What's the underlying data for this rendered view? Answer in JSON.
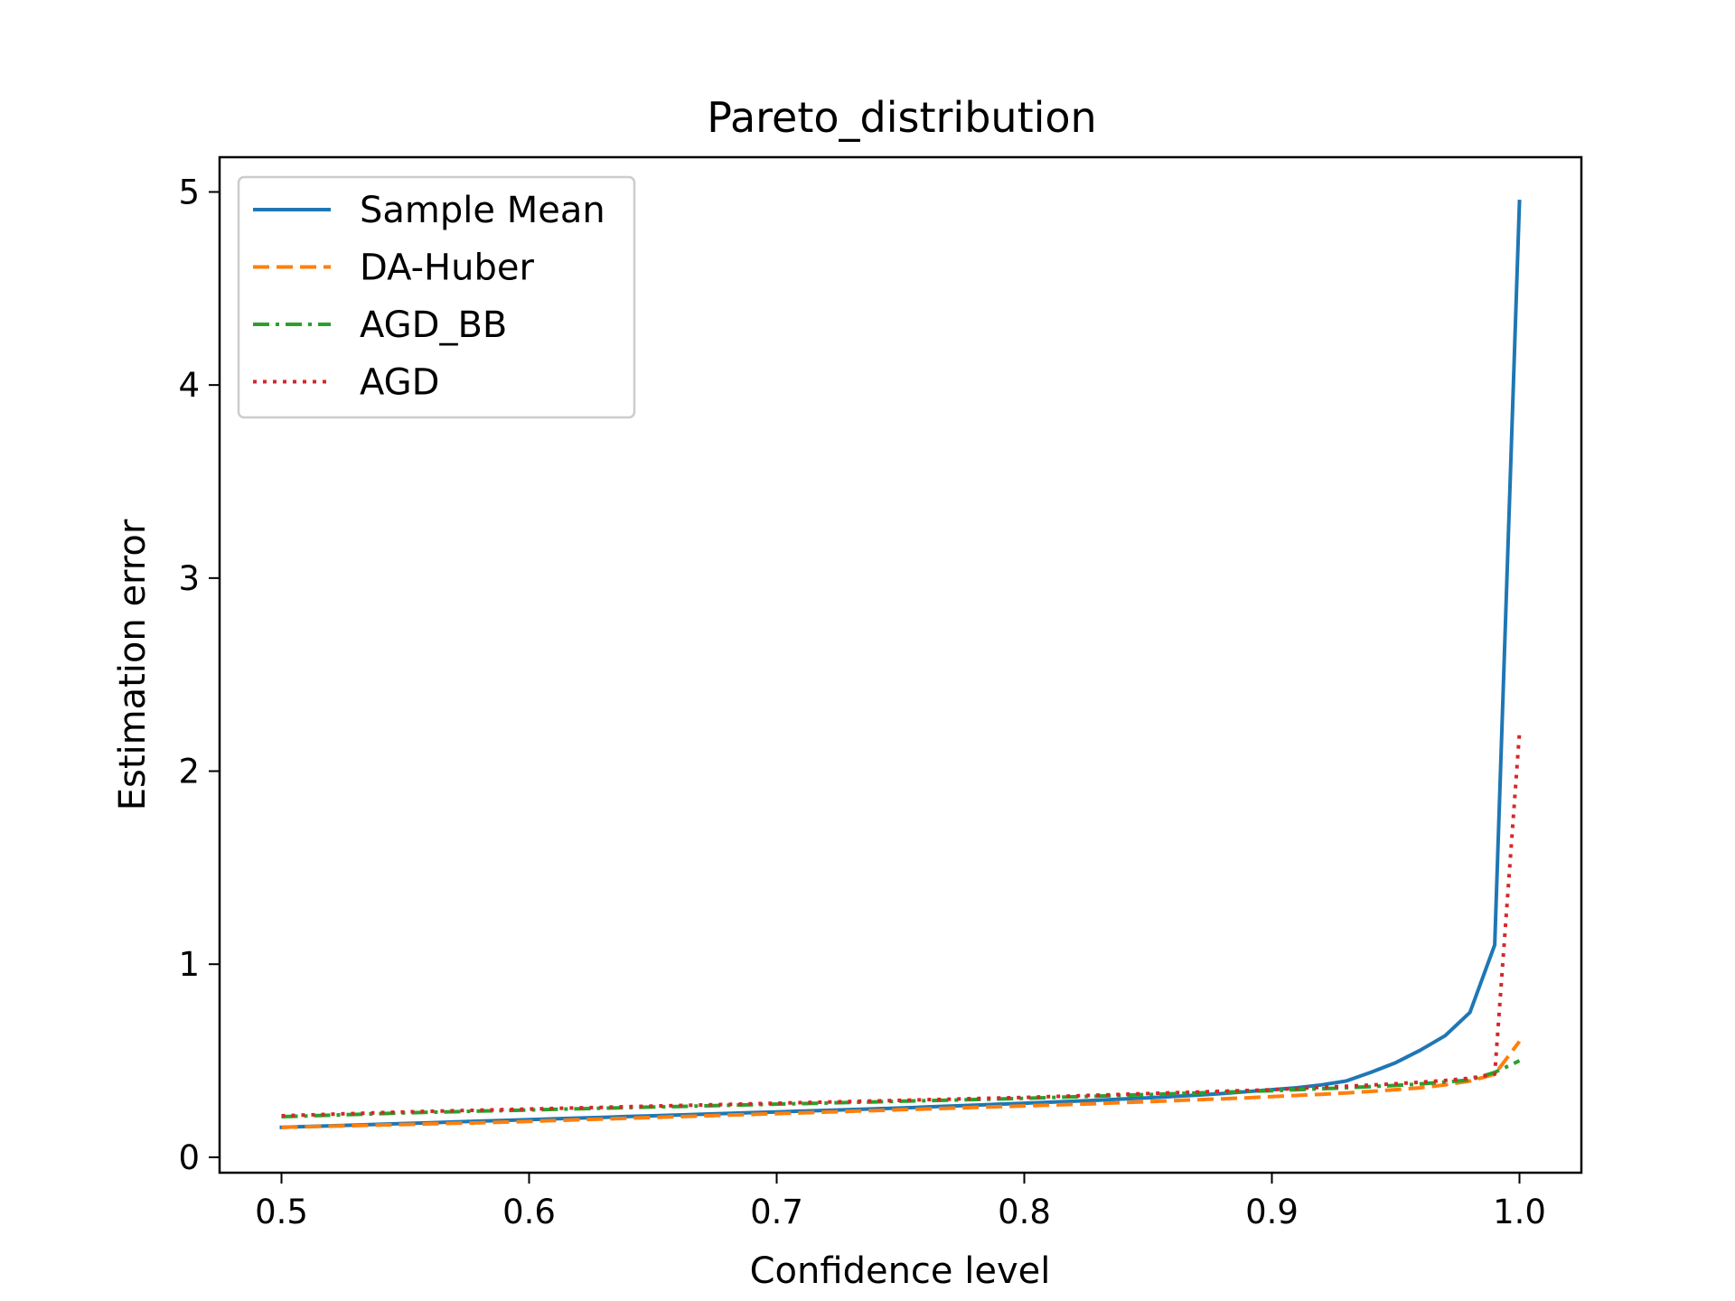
{
  "chart_data": {
    "type": "line",
    "title": "Pareto_distribution",
    "xlabel": "Confidence level",
    "ylabel": "Estimation error",
    "xlim": [
      0.475,
      1.025
    ],
    "ylim": [
      -0.08,
      5.18
    ],
    "xticks": [
      0.5,
      0.6,
      0.7,
      0.8,
      0.9,
      1.0
    ],
    "xtick_labels": [
      "0.5",
      "0.6",
      "0.7",
      "0.8",
      "0.9",
      "1.0"
    ],
    "yticks": [
      0,
      1,
      2,
      3,
      4,
      5
    ],
    "ytick_labels": [
      "0",
      "1",
      "2",
      "3",
      "4",
      "5"
    ],
    "grid": false,
    "legend_position": "top-left",
    "x": [
      0.5,
      0.51,
      0.52,
      0.53,
      0.54,
      0.55,
      0.56,
      0.57,
      0.58,
      0.59,
      0.6,
      0.61,
      0.62,
      0.63,
      0.64,
      0.65,
      0.66,
      0.67,
      0.68,
      0.69,
      0.7,
      0.71,
      0.72,
      0.73,
      0.74,
      0.75,
      0.76,
      0.77,
      0.78,
      0.79,
      0.8,
      0.81,
      0.82,
      0.83,
      0.84,
      0.85,
      0.86,
      0.87,
      0.88,
      0.89,
      0.9,
      0.91,
      0.92,
      0.93,
      0.94,
      0.95,
      0.96,
      0.97,
      0.98,
      0.99,
      1.0
    ],
    "series": [
      {
        "name": "Sample Mean",
        "color": "#1f77b4",
        "style": "solid",
        "values": [
          0.155,
          0.159,
          0.163,
          0.167,
          0.171,
          0.175,
          0.179,
          0.183,
          0.187,
          0.191,
          0.195,
          0.199,
          0.203,
          0.207,
          0.211,
          0.215,
          0.219,
          0.223,
          0.227,
          0.231,
          0.235,
          0.239,
          0.243,
          0.247,
          0.251,
          0.255,
          0.26,
          0.265,
          0.27,
          0.275,
          0.28,
          0.285,
          0.29,
          0.296,
          0.302,
          0.308,
          0.315,
          0.322,
          0.33,
          0.34,
          0.35,
          0.36,
          0.375,
          0.395,
          0.44,
          0.49,
          0.555,
          0.63,
          0.75,
          1.1,
          4.95
        ]
      },
      {
        "name": "DA-Huber",
        "color": "#ff7f0e",
        "style": "dashed",
        "values": [
          0.155,
          0.158,
          0.161,
          0.164,
          0.167,
          0.17,
          0.173,
          0.176,
          0.179,
          0.182,
          0.186,
          0.19,
          0.194,
          0.198,
          0.202,
          0.206,
          0.21,
          0.214,
          0.218,
          0.222,
          0.226,
          0.23,
          0.234,
          0.238,
          0.242,
          0.246,
          0.25,
          0.254,
          0.258,
          0.262,
          0.266,
          0.27,
          0.274,
          0.278,
          0.283,
          0.288,
          0.293,
          0.298,
          0.303,
          0.308,
          0.314,
          0.32,
          0.326,
          0.333,
          0.341,
          0.35,
          0.36,
          0.375,
          0.395,
          0.43,
          0.6
        ]
      },
      {
        "name": "AGD_BB",
        "color": "#2ca02c",
        "style": "dashdot",
        "values": [
          0.21,
          0.214,
          0.218,
          0.222,
          0.226,
          0.23,
          0.233,
          0.236,
          0.239,
          0.242,
          0.245,
          0.248,
          0.251,
          0.254,
          0.257,
          0.26,
          0.263,
          0.266,
          0.269,
          0.272,
          0.275,
          0.278,
          0.281,
          0.284,
          0.287,
          0.29,
          0.293,
          0.296,
          0.299,
          0.302,
          0.305,
          0.309,
          0.313,
          0.317,
          0.321,
          0.325,
          0.329,
          0.333,
          0.337,
          0.341,
          0.345,
          0.35,
          0.355,
          0.36,
          0.366,
          0.372,
          0.38,
          0.39,
          0.4,
          0.44,
          0.5
        ]
      },
      {
        "name": "AGD",
        "color": "#d62728",
        "style": "dotted",
        "values": [
          0.215,
          0.219,
          0.223,
          0.227,
          0.231,
          0.235,
          0.238,
          0.241,
          0.244,
          0.247,
          0.25,
          0.253,
          0.256,
          0.259,
          0.262,
          0.265,
          0.268,
          0.271,
          0.274,
          0.277,
          0.28,
          0.283,
          0.286,
          0.289,
          0.292,
          0.295,
          0.298,
          0.301,
          0.304,
          0.307,
          0.31,
          0.314,
          0.318,
          0.322,
          0.326,
          0.33,
          0.334,
          0.338,
          0.342,
          0.346,
          0.35,
          0.356,
          0.362,
          0.368,
          0.374,
          0.381,
          0.389,
          0.398,
          0.41,
          0.43,
          2.2
        ]
      }
    ]
  }
}
